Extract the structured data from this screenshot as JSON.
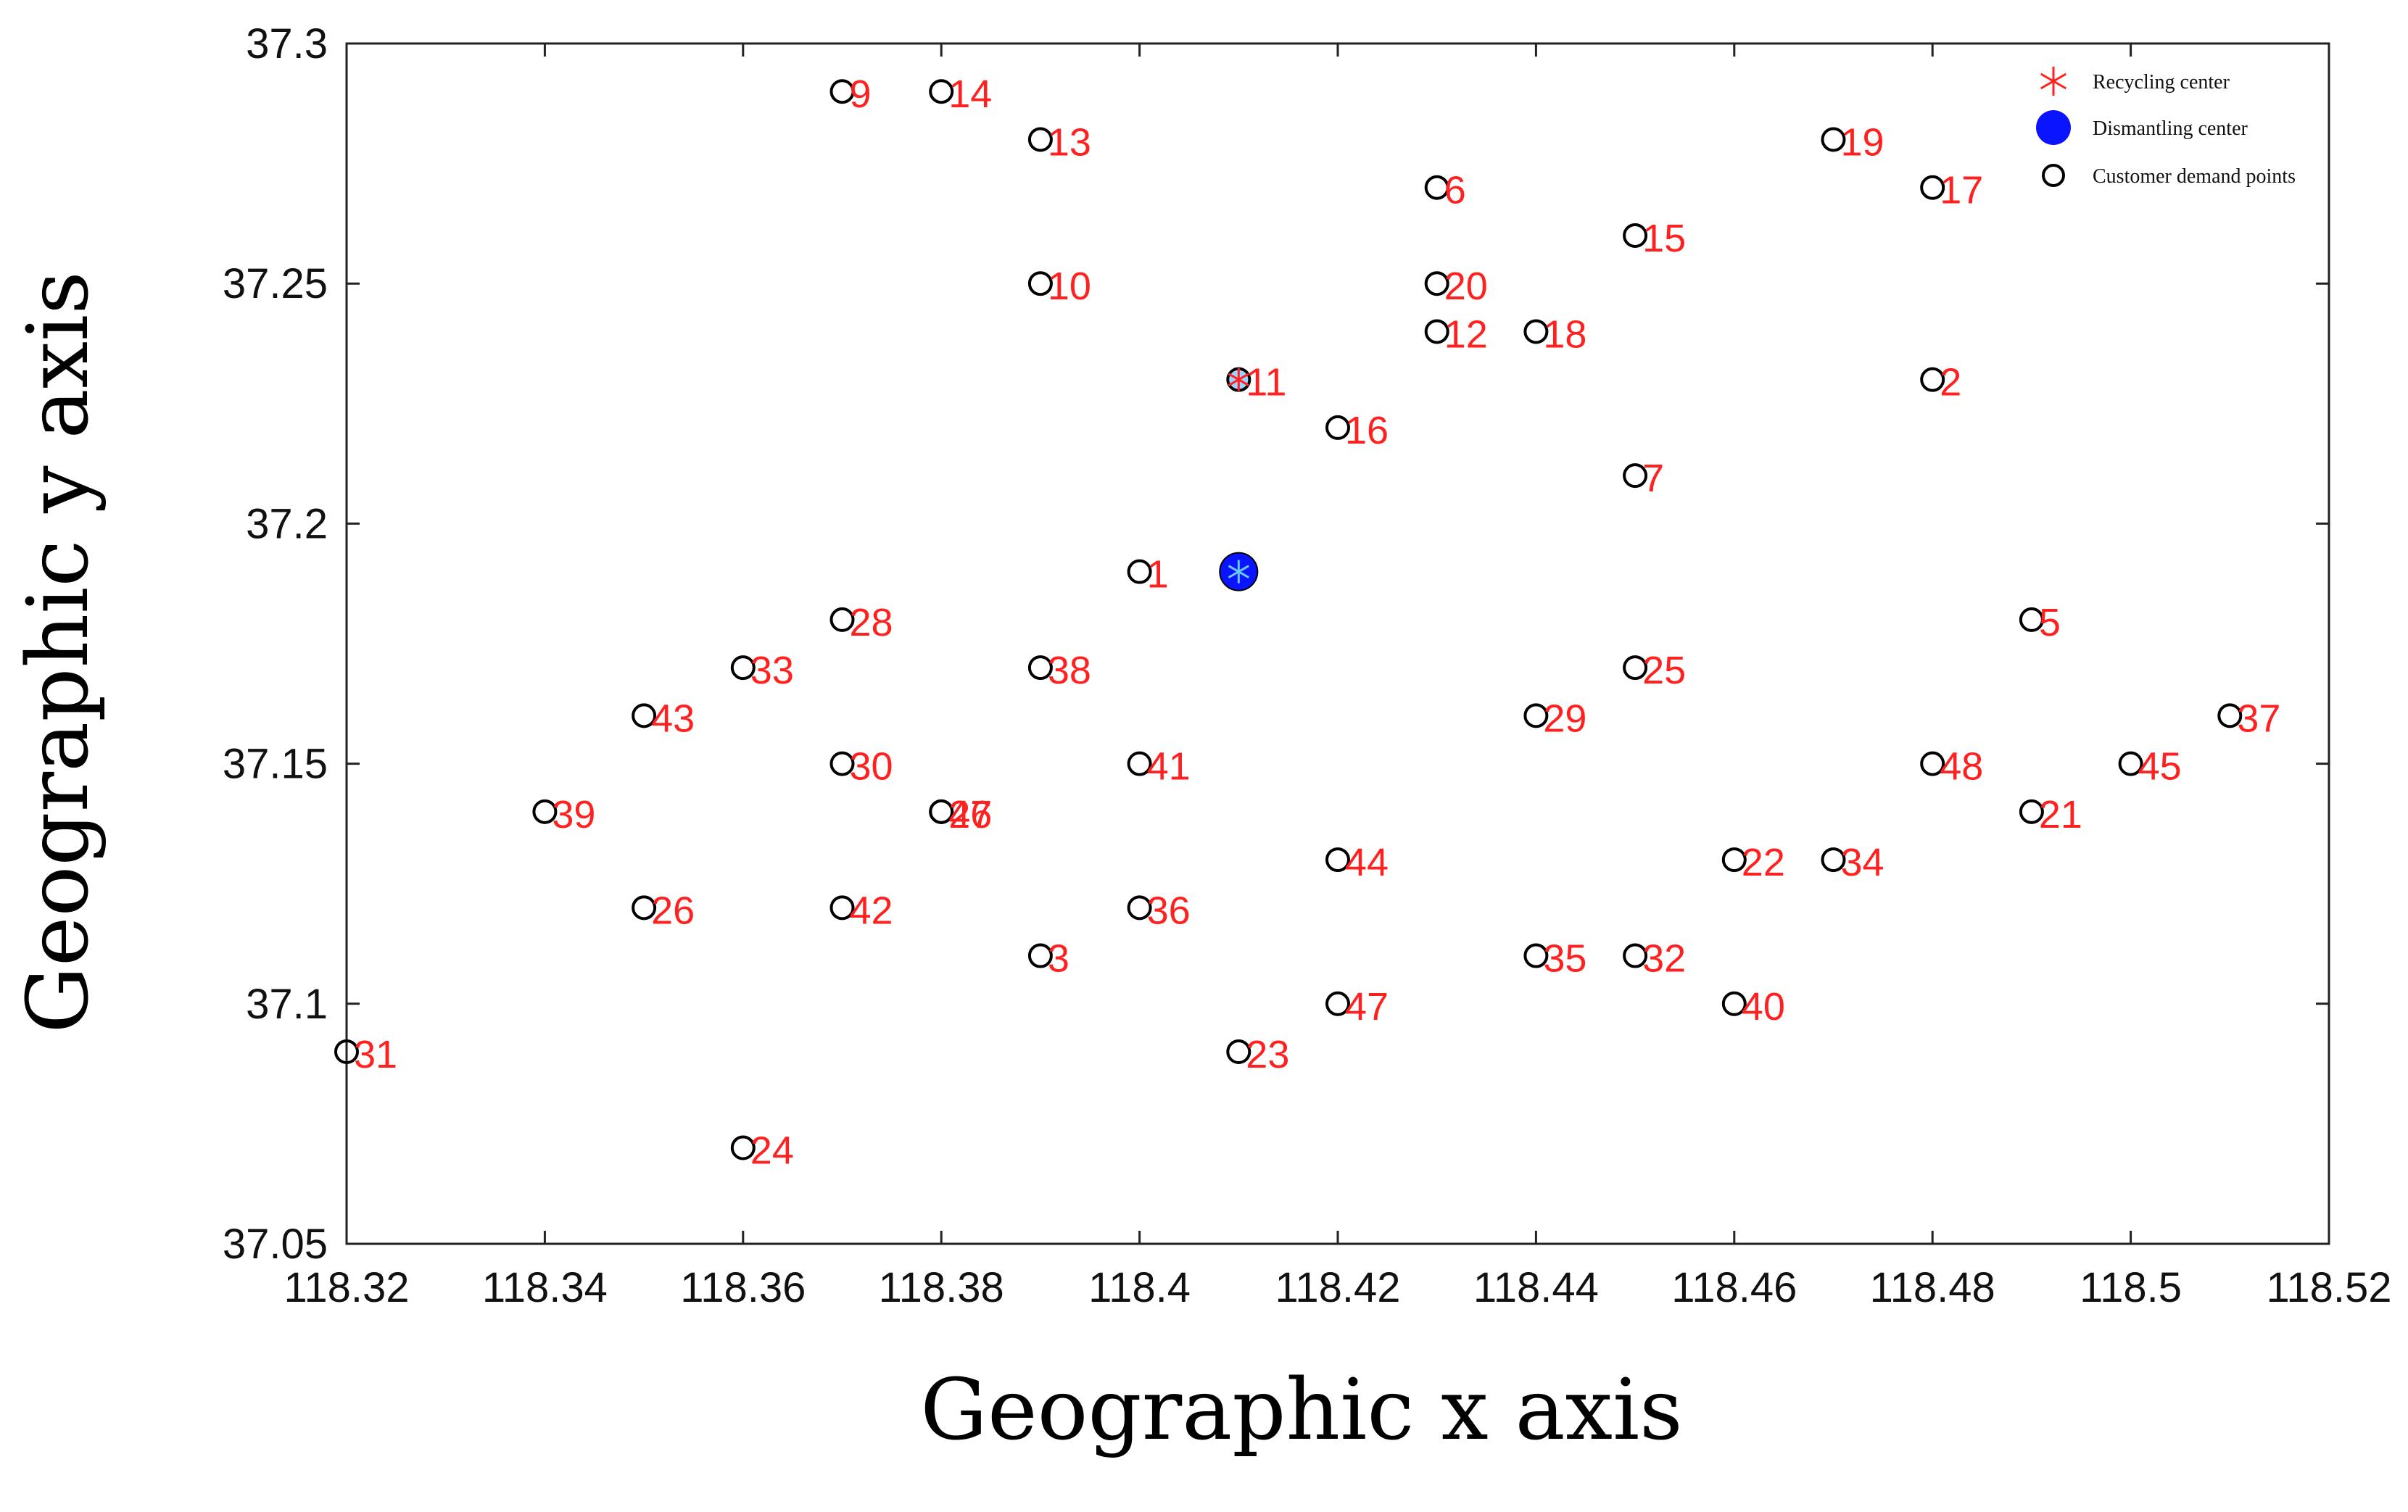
{
  "chart_data": {
    "type": "scatter",
    "xlabel": "Geographic x axis",
    "ylabel": "Geographic y axis",
    "xlim": [
      118.32,
      118.52
    ],
    "ylim": [
      37.05,
      37.3
    ],
    "xticks": [
      118.32,
      118.34,
      118.36,
      118.38,
      118.4,
      118.42,
      118.44,
      118.46,
      118.48,
      118.5,
      118.52
    ],
    "yticks": [
      37.05,
      37.1,
      37.15,
      37.2,
      37.25,
      37.3
    ],
    "xtick_labels": [
      "118.32",
      "118.34",
      "118.36",
      "118.38",
      "118.4",
      "118.42",
      "118.44",
      "118.46",
      "118.48",
      "118.5",
      "118.52"
    ],
    "ytick_labels": [
      "37.05",
      "37.1",
      "37.15",
      "37.2",
      "37.25",
      "37.3"
    ],
    "grid": false,
    "legend": {
      "placement": "top-right",
      "entries": [
        "Recycling center",
        "Dismantling center",
        "Customer demand points"
      ]
    },
    "colors": {
      "recycling": "#ff2020",
      "dismantling": "#0a14ff",
      "customer": "#000000",
      "labels": "#ff2020"
    },
    "series": [
      {
        "name": "Recycling center",
        "marker": "asterisk",
        "points": [
          {
            "x": 118.41,
            "y": 37.19
          },
          {
            "x": 118.41,
            "y": 37.23
          }
        ]
      },
      {
        "name": "Dismantling center",
        "marker": "filled-circle",
        "points": [
          {
            "x": 118.41,
            "y": 37.19
          }
        ]
      },
      {
        "name": "Customer demand points",
        "marker": "open-circle",
        "points": [
          {
            "label": "1",
            "x": 118.4,
            "y": 37.19
          },
          {
            "label": "2",
            "x": 118.48,
            "y": 37.23
          },
          {
            "label": "3",
            "x": 118.39,
            "y": 37.11
          },
          {
            "label": "5",
            "x": 118.49,
            "y": 37.18
          },
          {
            "label": "6",
            "x": 118.43,
            "y": 37.27
          },
          {
            "label": "7",
            "x": 118.45,
            "y": 37.21
          },
          {
            "label": "9",
            "x": 118.37,
            "y": 37.29
          },
          {
            "label": "10",
            "x": 118.39,
            "y": 37.25
          },
          {
            "label": "11",
            "x": 118.41,
            "y": 37.23
          },
          {
            "label": "12",
            "x": 118.43,
            "y": 37.24
          },
          {
            "label": "13",
            "x": 118.39,
            "y": 37.28
          },
          {
            "label": "14",
            "x": 118.38,
            "y": 37.29
          },
          {
            "label": "15",
            "x": 118.45,
            "y": 37.26
          },
          {
            "label": "16",
            "x": 118.42,
            "y": 37.22
          },
          {
            "label": "17",
            "x": 118.48,
            "y": 37.27
          },
          {
            "label": "18",
            "x": 118.44,
            "y": 37.24
          },
          {
            "label": "19",
            "x": 118.47,
            "y": 37.28
          },
          {
            "label": "20",
            "x": 118.43,
            "y": 37.25
          },
          {
            "label": "21",
            "x": 118.49,
            "y": 37.14
          },
          {
            "label": "22",
            "x": 118.46,
            "y": 37.13
          },
          {
            "label": "23",
            "x": 118.41,
            "y": 37.09
          },
          {
            "label": "24",
            "x": 118.36,
            "y": 37.07
          },
          {
            "label": "25",
            "x": 118.45,
            "y": 37.17
          },
          {
            "label": "26",
            "x": 118.35,
            "y": 37.12
          },
          {
            "label": "27",
            "x": 118.38,
            "y": 37.14
          },
          {
            "label": "28",
            "x": 118.37,
            "y": 37.18
          },
          {
            "label": "29",
            "x": 118.44,
            "y": 37.16
          },
          {
            "label": "30",
            "x": 118.37,
            "y": 37.15
          },
          {
            "label": "31",
            "x": 118.32,
            "y": 37.09
          },
          {
            "label": "32",
            "x": 118.45,
            "y": 37.11
          },
          {
            "label": "33",
            "x": 118.36,
            "y": 37.17
          },
          {
            "label": "34",
            "x": 118.47,
            "y": 37.13
          },
          {
            "label": "35",
            "x": 118.44,
            "y": 37.11
          },
          {
            "label": "36",
            "x": 118.4,
            "y": 37.12
          },
          {
            "label": "37",
            "x": 118.51,
            "y": 37.16
          },
          {
            "label": "38",
            "x": 118.39,
            "y": 37.17
          },
          {
            "label": "39",
            "x": 118.34,
            "y": 37.14
          },
          {
            "label": "40",
            "x": 118.46,
            "y": 37.1
          },
          {
            "label": "41",
            "x": 118.4,
            "y": 37.15
          },
          {
            "label": "42",
            "x": 118.37,
            "y": 37.12
          },
          {
            "label": "43",
            "x": 118.35,
            "y": 37.16
          },
          {
            "label": "44",
            "x": 118.42,
            "y": 37.13
          },
          {
            "label": "45",
            "x": 118.5,
            "y": 37.15
          },
          {
            "label": "46",
            "x": 118.38,
            "y": 37.14
          },
          {
            "label": "47",
            "x": 118.42,
            "y": 37.1
          },
          {
            "label": "48",
            "x": 118.48,
            "y": 37.15
          }
        ]
      }
    ]
  }
}
